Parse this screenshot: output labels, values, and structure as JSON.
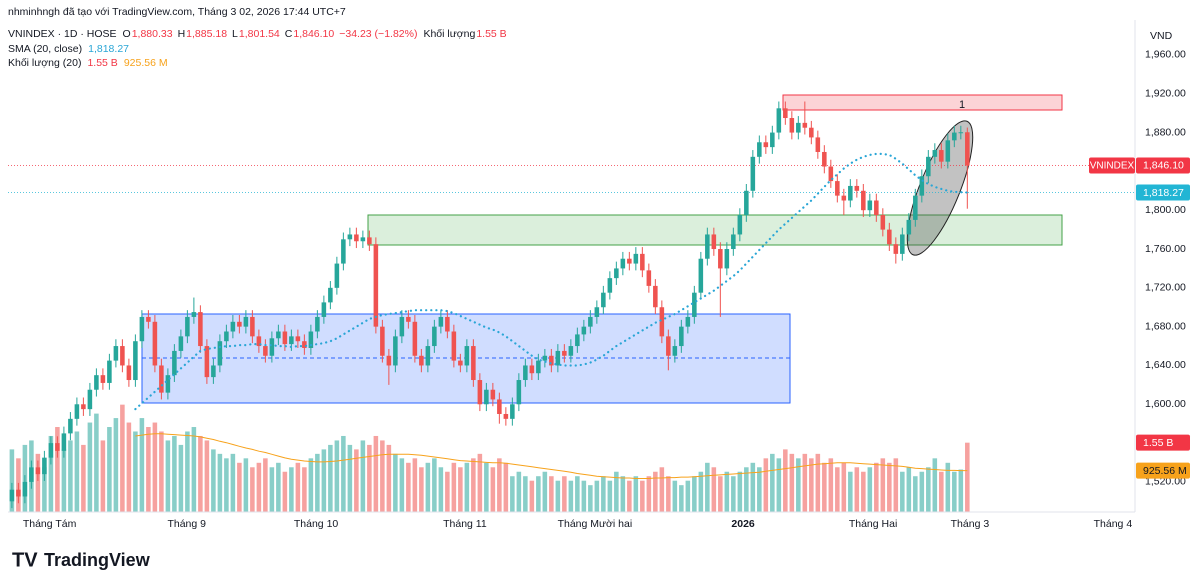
{
  "chart_data": {
    "type": "candlestick",
    "credit": "nhminhngh đã tạo với TradingView.com, Tháng 3 02, 2026 17:44 UTC+7",
    "symbol": "VNINDEX · 1D · HOSE",
    "ohlc_legend": [
      {
        "key": "O",
        "value": "1,880.33"
      },
      {
        "key": "H",
        "value": "1,885.18"
      },
      {
        "key": "L",
        "value": "1,801.54"
      },
      {
        "key": "C",
        "value": "1,846.10"
      }
    ],
    "change": "−34.23 (−1.82%)",
    "volume_legend": {
      "key": "Khối lượng",
      "value": "1.55 B"
    },
    "sma_legend": {
      "key": "SMA (20, close)",
      "value": "1,818.27"
    },
    "vol_ma_legend": {
      "key": "Khối lượng (20)",
      "values": [
        "1.55 B",
        "925.56 M"
      ]
    },
    "y_unit": "VND",
    "drawing_label": "1",
    "brand": "TradingView",
    "up_color": "#26a69a",
    "down_color": "#ef5350",
    "sma_color": "#2aa6d6",
    "vol_ma_color": "#f7a21b",
    "grid": false,
    "xlim": [
      -0.6,
      172.8
    ],
    "ylim": [
      1489,
      1996
    ],
    "volume_lim": [
      0,
      11
    ],
    "xticks": [
      {
        "value": 5.8,
        "label": "Tháng Tám"
      },
      {
        "value": 26.9,
        "label": "Tháng 9"
      },
      {
        "value": 46.8,
        "label": "Tháng 10"
      },
      {
        "value": 69.7,
        "label": "Tháng 11"
      },
      {
        "value": 89.7,
        "label": "Tháng Mười hai"
      },
      {
        "value": 112.5,
        "label": "2026"
      },
      {
        "value": 132.5,
        "label": "Tháng Hai"
      },
      {
        "value": 147.4,
        "label": "Tháng 3"
      },
      {
        "value": 169.4,
        "label": "Tháng 4"
      }
    ],
    "yticks": [
      {
        "value": 1960,
        "label": "1,960.00"
      },
      {
        "value": 1920,
        "label": "1,920.00"
      },
      {
        "value": 1880,
        "label": "1,880.00"
      },
      {
        "value": 1800,
        "label": "1,800.00"
      },
      {
        "value": 1760,
        "label": "1,760.00"
      },
      {
        "value": 1720,
        "label": "1,720.00"
      },
      {
        "value": 1680,
        "label": "1,680.00"
      },
      {
        "value": 1640,
        "label": "1,640.00"
      },
      {
        "value": 1600,
        "label": "1,600.00"
      },
      {
        "value": 1520,
        "label": "1,520.00"
      }
    ],
    "candles": {
      "open": [
        1500,
        1512,
        1505,
        1520,
        1535,
        1528,
        1545,
        1560,
        1552,
        1570,
        1585,
        1600,
        1595,
        1615,
        1630,
        1622,
        1645,
        1660,
        1640,
        1625,
        1665,
        1690,
        1685,
        1640,
        1612,
        1630,
        1655,
        1670,
        1690,
        1695,
        1660,
        1628,
        1640,
        1665,
        1675,
        1685,
        1680,
        1690,
        1670,
        1660,
        1650,
        1668,
        1675,
        1662,
        1670,
        1665,
        1658,
        1675,
        1690,
        1705,
        1720,
        1745,
        1770,
        1775,
        1768,
        1772,
        1765,
        1680,
        1650,
        1640,
        1670,
        1690,
        1685,
        1650,
        1640,
        1660,
        1680,
        1690,
        1675,
        1645,
        1640,
        1660,
        1625,
        1600,
        1615,
        1605,
        1590,
        1585,
        1600,
        1625,
        1640,
        1632,
        1645,
        1650,
        1640,
        1655,
        1650,
        1660,
        1672,
        1680,
        1690,
        1700,
        1715,
        1730,
        1740,
        1750,
        1745,
        1755,
        1738,
        1722,
        1700,
        1670,
        1650,
        1660,
        1680,
        1690,
        1715,
        1750,
        1775,
        1760,
        1740,
        1760,
        1775,
        1795,
        1820,
        1855,
        1870,
        1865,
        1880,
        1905,
        1895,
        1880,
        1890,
        1885,
        1875,
        1860,
        1845,
        1830,
        1815,
        1810,
        1825,
        1820,
        1800,
        1810,
        1795,
        1780,
        1765,
        1755,
        1775,
        1790,
        1815,
        1835,
        1855,
        1862,
        1850,
        1872,
        1880,
        1880.33
      ],
      "high": [
        1519,
        1519,
        1527,
        1542,
        1542,
        1552,
        1567,
        1567,
        1577,
        1592,
        1607,
        1607,
        1622,
        1637,
        1637,
        1652,
        1667,
        1667,
        1647,
        1672,
        1697,
        1697,
        1692,
        1647,
        1637,
        1662,
        1677,
        1697,
        1710,
        1702,
        1667,
        1647,
        1672,
        1682,
        1692,
        1692,
        1697,
        1697,
        1677,
        1667,
        1675,
        1682,
        1682,
        1677,
        1677,
        1672,
        1682,
        1697,
        1712,
        1727,
        1752,
        1777,
        1782,
        1782,
        1779,
        1779,
        1772,
        1687,
        1657,
        1677,
        1697,
        1697,
        1692,
        1657,
        1667,
        1687,
        1697,
        1697,
        1682,
        1652,
        1667,
        1667,
        1632,
        1622,
        1622,
        1612,
        1597,
        1607,
        1632,
        1647,
        1647,
        1652,
        1657,
        1657,
        1662,
        1662,
        1667,
        1679,
        1687,
        1697,
        1707,
        1722,
        1737,
        1747,
        1757,
        1757,
        1762,
        1762,
        1745,
        1729,
        1707,
        1677,
        1667,
        1687,
        1697,
        1722,
        1757,
        1782,
        1782,
        1767,
        1767,
        1782,
        1802,
        1827,
        1862,
        1877,
        1877,
        1887,
        1912,
        1912,
        1902,
        1897,
        1912,
        1892,
        1882,
        1867,
        1852,
        1837,
        1822,
        1832,
        1832,
        1827,
        1817,
        1817,
        1802,
        1787,
        1772,
        1782,
        1797,
        1822,
        1842,
        1862,
        1869,
        1869,
        1879,
        1887,
        1887,
        1885.18
      ],
      "low": [
        1493,
        1498,
        1498,
        1513,
        1521,
        1521,
        1538,
        1545,
        1545,
        1563,
        1578,
        1588,
        1588,
        1608,
        1615,
        1615,
        1638,
        1633,
        1618,
        1618,
        1658,
        1678,
        1633,
        1605,
        1605,
        1623,
        1648,
        1663,
        1683,
        1653,
        1621,
        1621,
        1633,
        1658,
        1668,
        1673,
        1673,
        1663,
        1653,
        1643,
        1643,
        1661,
        1655,
        1655,
        1658,
        1651,
        1651,
        1668,
        1683,
        1698,
        1713,
        1738,
        1763,
        1761,
        1761,
        1758,
        1673,
        1643,
        1620,
        1633,
        1663,
        1678,
        1643,
        1633,
        1633,
        1653,
        1673,
        1668,
        1638,
        1633,
        1633,
        1618,
        1593,
        1593,
        1598,
        1580,
        1578,
        1578,
        1593,
        1618,
        1625,
        1625,
        1638,
        1633,
        1633,
        1643,
        1643,
        1653,
        1665,
        1673,
        1683,
        1693,
        1708,
        1723,
        1733,
        1738,
        1738,
        1731,
        1715,
        1693,
        1663,
        1635,
        1643,
        1653,
        1673,
        1683,
        1708,
        1743,
        1753,
        1690,
        1733,
        1753,
        1768,
        1788,
        1813,
        1848,
        1858,
        1858,
        1873,
        1888,
        1873,
        1873,
        1878,
        1868,
        1853,
        1838,
        1823,
        1808,
        1795,
        1803,
        1813,
        1793,
        1793,
        1788,
        1773,
        1758,
        1745,
        1748,
        1768,
        1783,
        1808,
        1828,
        1848,
        1843,
        1843,
        1865,
        1873,
        1801.54
      ],
      "close": [
        1512,
        1505,
        1520,
        1535,
        1528,
        1545,
        1560,
        1552,
        1570,
        1585,
        1600,
        1595,
        1615,
        1630,
        1622,
        1645,
        1660,
        1640,
        1625,
        1665,
        1690,
        1685,
        1640,
        1612,
        1630,
        1655,
        1670,
        1690,
        1695,
        1660,
        1628,
        1640,
        1665,
        1675,
        1685,
        1680,
        1690,
        1670,
        1660,
        1650,
        1668,
        1675,
        1662,
        1670,
        1665,
        1658,
        1675,
        1690,
        1705,
        1720,
        1745,
        1770,
        1775,
        1768,
        1772,
        1765,
        1680,
        1650,
        1640,
        1670,
        1690,
        1685,
        1650,
        1640,
        1660,
        1680,
        1690,
        1675,
        1645,
        1640,
        1660,
        1625,
        1600,
        1615,
        1605,
        1590,
        1585,
        1600,
        1625,
        1640,
        1632,
        1645,
        1650,
        1640,
        1655,
        1650,
        1660,
        1672,
        1680,
        1690,
        1700,
        1715,
        1730,
        1740,
        1750,
        1745,
        1755,
        1738,
        1722,
        1700,
        1670,
        1650,
        1660,
        1680,
        1690,
        1715,
        1750,
        1775,
        1760,
        1740,
        1760,
        1775,
        1795,
        1820,
        1855,
        1870,
        1865,
        1880,
        1905,
        1895,
        1880,
        1890,
        1885,
        1875,
        1860,
        1845,
        1830,
        1815,
        1810,
        1825,
        1820,
        1800,
        1810,
        1795,
        1780,
        1765,
        1755,
        1775,
        1790,
        1815,
        1835,
        1855,
        1862,
        1850,
        1872,
        1880,
        1880.33,
        1846.1
      ],
      "volume": [
        1.4,
        1.2,
        1.5,
        1.6,
        1.3,
        1.0,
        1.7,
        1.9,
        1.4,
        1.6,
        1.8,
        1.5,
        2.0,
        2.2,
        1.6,
        1.9,
        2.1,
        2.4,
        2.0,
        1.8,
        2.1,
        1.9,
        2.0,
        1.8,
        1.6,
        1.7,
        1.5,
        1.8,
        1.9,
        1.7,
        1.6,
        1.4,
        1.3,
        1.2,
        1.3,
        1.1,
        1.2,
        1.0,
        1.1,
        1.2,
        1.0,
        1.1,
        0.9,
        1.0,
        1.1,
        1.0,
        1.2,
        1.3,
        1.4,
        1.5,
        1.6,
        1.7,
        1.5,
        1.4,
        1.6,
        1.5,
        1.7,
        1.6,
        1.5,
        1.3,
        1.2,
        1.1,
        1.2,
        1.0,
        1.1,
        1.2,
        1.0,
        0.9,
        1.1,
        1.0,
        1.1,
        1.2,
        1.3,
        1.1,
        1.0,
        1.2,
        1.1,
        0.8,
        0.9,
        0.8,
        0.7,
        0.8,
        0.9,
        0.8,
        0.7,
        0.8,
        0.7,
        0.8,
        0.7,
        0.6,
        0.7,
        0.8,
        0.7,
        0.9,
        0.8,
        0.7,
        0.8,
        0.7,
        0.8,
        0.9,
        1.0,
        0.8,
        0.7,
        0.6,
        0.7,
        0.8,
        0.9,
        1.1,
        1.0,
        0.8,
        0.9,
        0.8,
        0.9,
        1.0,
        1.1,
        1.0,
        1.2,
        1.3,
        1.2,
        1.4,
        1.3,
        1.2,
        1.3,
        1.2,
        1.3,
        1.1,
        1.2,
        1.0,
        1.1,
        0.9,
        1.0,
        0.9,
        1.0,
        1.1,
        1.2,
        1.1,
        1.2,
        0.9,
        1.0,
        0.8,
        0.9,
        1.0,
        1.2,
        0.9,
        1.1,
        0.9,
        0.95,
        1.55
      ]
    },
    "sma": [
      null,
      null,
      null,
      null,
      null,
      null,
      null,
      null,
      null,
      null,
      null,
      null,
      null,
      null,
      null,
      null,
      null,
      null,
      null,
      1595,
      1601,
      1607,
      1613,
      1619,
      1625,
      1631,
      1637,
      1643,
      1649,
      1655,
      1657,
      1658,
      1659,
      1660,
      1660,
      1661,
      1661,
      1662,
      1662,
      1661,
      1661,
      1660,
      1660,
      1659,
      1660,
      1660,
      1661,
      1662,
      1663,
      1665,
      1668,
      1672,
      1676,
      1680,
      1684,
      1688,
      1690,
      1692,
      1693,
      1694,
      1695,
      1696,
      1697,
      1697,
      1697,
      1697,
      1697,
      1696,
      1694,
      1691,
      1688,
      1685,
      1682,
      1679,
      1677,
      1674,
      1670,
      1665,
      1660,
      1655,
      1650,
      1646,
      1644,
      1642,
      1641,
      1640,
      1640,
      1640,
      1641,
      1643,
      1646,
      1650,
      1655,
      1660,
      1664,
      1668,
      1672,
      1676,
      1680,
      1684,
      1687,
      1690,
      1693,
      1697,
      1701,
      1705,
      1709,
      1713,
      1717,
      1722,
      1727,
      1732,
      1738,
      1745,
      1752,
      1759,
      1766,
      1773,
      1780,
      1786,
      1792,
      1798,
      1804,
      1810,
      1817,
      1824,
      1831,
      1837,
      1843,
      1848,
      1852,
      1855,
      1857,
      1858,
      1858,
      1857,
      1853,
      1848,
      1842,
      1836,
      1831,
      1827,
      1824,
      1822,
      1820,
      1819,
      1818.5,
      1818.27
    ],
    "vol_ma": [
      null,
      null,
      null,
      null,
      null,
      null,
      null,
      null,
      null,
      null,
      null,
      null,
      null,
      null,
      null,
      null,
      null,
      null,
      null,
      1.7,
      1.72,
      1.74,
      1.75,
      1.75,
      1.74,
      1.73,
      1.72,
      1.71,
      1.7,
      1.68,
      1.65,
      1.62,
      1.58,
      1.55,
      1.51,
      1.47,
      1.43,
      1.4,
      1.36,
      1.33,
      1.29,
      1.25,
      1.21,
      1.18,
      1.16,
      1.14,
      1.13,
      1.12,
      1.12,
      1.13,
      1.14,
      1.16,
      1.18,
      1.2,
      1.22,
      1.24,
      1.26,
      1.28,
      1.29,
      1.29,
      1.29,
      1.29,
      1.28,
      1.27,
      1.25,
      1.23,
      1.21,
      1.19,
      1.17,
      1.15,
      1.14,
      1.13,
      1.12,
      1.11,
      1.1,
      1.1,
      1.09,
      1.07,
      1.05,
      1.03,
      1.01,
      0.99,
      0.97,
      0.95,
      0.93,
      0.91,
      0.89,
      0.86,
      0.84,
      0.82,
      0.8,
      0.79,
      0.78,
      0.77,
      0.76,
      0.76,
      0.75,
      0.75,
      0.75,
      0.76,
      0.76,
      0.77,
      0.77,
      0.78,
      0.78,
      0.79,
      0.8,
      0.81,
      0.82,
      0.83,
      0.84,
      0.85,
      0.86,
      0.87,
      0.88,
      0.89,
      0.91,
      0.93,
      0.95,
      0.97,
      0.99,
      1.01,
      1.03,
      1.05,
      1.07,
      1.08,
      1.09,
      1.1,
      1.1,
      1.1,
      1.09,
      1.08,
      1.07,
      1.06,
      1.05,
      1.04,
      1.03,
      1.02,
      1.0,
      0.98,
      0.97,
      0.96,
      0.95,
      0.94,
      0.93,
      0.93,
      0.926,
      0.92556
    ],
    "price_tags": [
      {
        "name": "VNINDEX",
        "label": "1,846.10",
        "value": 1846.1,
        "color": "#f23645",
        "line": true
      },
      {
        "label": "1,818.27",
        "value": 1818.27,
        "color": "#22b5d4",
        "line": true
      }
    ],
    "volume_tags": [
      {
        "label": "1.55 B",
        "value": 1.55,
        "color": "#f23645",
        "text_color": "#ffffff"
      },
      {
        "label": "925.56 M",
        "value": 0.92556,
        "color": "#f7a21b",
        "text_color": "#131722"
      }
    ]
  }
}
